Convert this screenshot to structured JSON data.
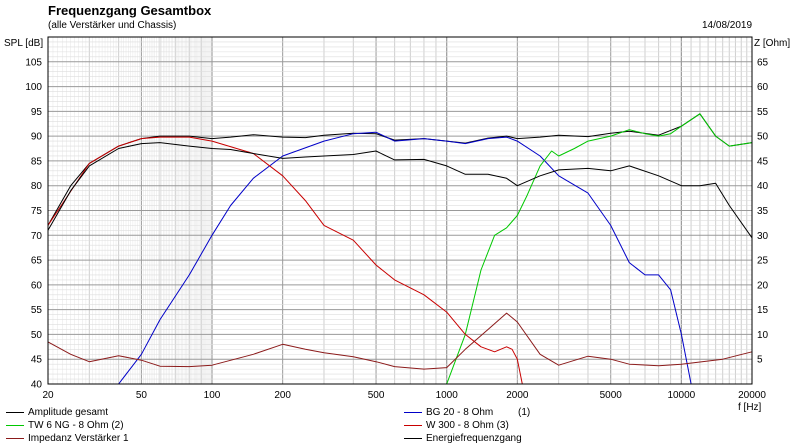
{
  "header": {
    "title": "Frequenzgang Gesamtbox",
    "subtitle": "(alle Verstärker und Chassis)",
    "date": "14/08/2019"
  },
  "axes": {
    "left_label": "SPL [dB]",
    "right_label": "Z [Ohm]",
    "x_unit": "f [Hz]"
  },
  "legend": [
    {
      "label": "Amplitude gesamt",
      "index": "",
      "color": "#000000"
    },
    {
      "label": "BG 20 - 8 Ohm",
      "index": "(1)",
      "color": "#0000c8"
    },
    {
      "label": "TW 6 NG - 8 Ohm (2)",
      "index": "",
      "color": "#00c800"
    },
    {
      "label": "W 300 - 8 Ohm (3)",
      "index": "",
      "color": "#c80000"
    },
    {
      "label": "Impedanz Verstärker 1",
      "index": "",
      "color": "#8b1a1a"
    },
    {
      "label": "Energiefrequenzgang",
      "index": "",
      "color": "#000000"
    }
  ],
  "chart_data": {
    "type": "line",
    "title": "Frequenzgang Gesamtbox",
    "subtitle": "(alle Verstärker und Chassis)",
    "xlabel": "f [Hz]",
    "ylabel": "SPL [dB]",
    "y2label": "Z [Ohm]",
    "xscale": "log",
    "xlim": [
      20,
      20000
    ],
    "ylim": [
      40,
      110
    ],
    "y2lim": [
      0,
      70
    ],
    "grid": true,
    "legend_position": "bottom",
    "x_ticks": [
      20,
      50,
      100,
      200,
      500,
      1000,
      2000,
      5000,
      10000,
      20000
    ],
    "x_tick_labels": [
      "20",
      "50",
      "100",
      "200",
      "500",
      "1000",
      "2000",
      "5000",
      "10000",
      "20000"
    ],
    "y_ticks": [
      40,
      45,
      50,
      55,
      60,
      65,
      70,
      75,
      80,
      85,
      90,
      95,
      100,
      105
    ],
    "y_tick_labels": [
      "40",
      "45",
      "50",
      "55",
      "60",
      "65",
      "70",
      "75",
      "80",
      "85",
      "90",
      "95",
      "100",
      "105"
    ],
    "y2_ticks": [
      5,
      10,
      15,
      20,
      25,
      30,
      35,
      40,
      45,
      50,
      55,
      60,
      65
    ],
    "y2_tick_labels": [
      "5",
      "10",
      "15",
      "20",
      "25",
      "30",
      "35",
      "40",
      "45",
      "50",
      "55",
      "60",
      "65"
    ],
    "series": [
      {
        "name": "Amplitude gesamt",
        "color": "#000000",
        "x": [
          20,
          25,
          30,
          40,
          50,
          60,
          80,
          100,
          120,
          150,
          200,
          250,
          300,
          400,
          500,
          600,
          800,
          1000,
          1200,
          1500,
          1800,
          2000,
          2500,
          3000,
          4000,
          5000,
          6000,
          8000,
          10000,
          12000,
          14000,
          16000,
          20000
        ],
        "y": [
          72,
          80,
          84.5,
          88,
          89.5,
          90,
          90,
          89.5,
          89.8,
          90.3,
          89.8,
          89.7,
          90.2,
          90.6,
          90.5,
          89.2,
          89.5,
          89,
          88.6,
          89.6,
          90,
          89.5,
          89.8,
          90.2,
          89.9,
          90.6,
          91,
          90.2,
          92,
          94.5,
          90,
          88,
          88.7
        ]
      },
      {
        "name": "BG 20 - 8 Ohm",
        "color": "#0000c8",
        "x": [
          20,
          40,
          50,
          60,
          80,
          100,
          120,
          150,
          200,
          300,
          400,
          500,
          600,
          800,
          1000,
          1200,
          1500,
          1800,
          2000,
          2500,
          3000,
          4000,
          5000,
          6000,
          7000,
          8000,
          9000,
          10000,
          11000,
          12000
        ],
        "y": [
          40,
          40,
          46,
          53,
          62,
          70,
          76,
          81.5,
          86,
          89,
          90.5,
          90.8,
          89,
          89.5,
          89,
          88.5,
          89.5,
          89.8,
          89,
          86,
          82,
          78.5,
          72,
          64.5,
          62,
          62,
          59,
          50,
          40,
          40
        ]
      },
      {
        "name": "TW 6 NG - 8 Ohm (2)",
        "color": "#00c800",
        "x": [
          20,
          500,
          1000,
          1200,
          1400,
          1600,
          1800,
          2000,
          2200,
          2500,
          2800,
          3000,
          3500,
          4000,
          5000,
          6000,
          7000,
          8000,
          9000,
          10000,
          12000,
          14000,
          16000,
          20000
        ],
        "y": [
          40,
          40,
          40,
          50,
          63,
          70,
          71.5,
          74,
          78,
          84,
          87,
          86,
          87.5,
          89,
          90,
          91.3,
          90.5,
          90,
          90.5,
          92,
          94.5,
          90,
          88,
          88.7
        ]
      },
      {
        "name": "W 300 - 8 Ohm (3)",
        "color": "#c80000",
        "x": [
          20,
          30,
          40,
          50,
          60,
          80,
          100,
          150,
          200,
          250,
          300,
          400,
          500,
          600,
          800,
          1000,
          1200,
          1400,
          1600,
          1800,
          1900,
          2000,
          2100,
          2200,
          20000
        ],
        "y": [
          72,
          84.5,
          88,
          89.5,
          89.8,
          89.8,
          89,
          86.5,
          82,
          77,
          72,
          69,
          64,
          61,
          58,
          54.5,
          50,
          47.5,
          46.5,
          47.5,
          47,
          45,
          40,
          40,
          40
        ]
      },
      {
        "name": "Impedanz Verstärker 1",
        "color": "#8b1a1a",
        "x": [
          20,
          25,
          30,
          40,
          50,
          60,
          80,
          100,
          150,
          200,
          250,
          300,
          400,
          500,
          600,
          800,
          1000,
          1200,
          1500,
          1800,
          2000,
          2500,
          3000,
          4000,
          5000,
          6000,
          8000,
          10000,
          15000,
          20000
        ],
        "y2": [
          8.5,
          6,
          4.5,
          5.7,
          4.8,
          3.6,
          3.5,
          3.8,
          6,
          8,
          7,
          6.3,
          5.5,
          4.5,
          3.5,
          3,
          3.3,
          7,
          11,
          14.3,
          12.5,
          6,
          3.8,
          5.6,
          5,
          4,
          3.7,
          4,
          5,
          6.5
        ]
      },
      {
        "name": "Energiefrequenzgang",
        "color": "#000000",
        "x": [
          20,
          25,
          30,
          40,
          50,
          60,
          80,
          100,
          120,
          150,
          200,
          250,
          300,
          400,
          500,
          600,
          800,
          1000,
          1200,
          1500,
          1800,
          2000,
          2500,
          3000,
          4000,
          5000,
          6000,
          8000,
          10000,
          12000,
          14000,
          16000,
          20000
        ],
        "y": [
          71,
          79,
          84,
          87.5,
          88.5,
          88.7,
          88,
          87.5,
          87.3,
          86.5,
          85.5,
          85.8,
          86,
          86.3,
          87,
          85.2,
          85.3,
          84,
          82.3,
          82.3,
          81.5,
          80,
          82,
          83.2,
          83.5,
          83,
          84,
          82,
          80,
          80,
          80.5,
          76,
          69.5
        ]
      }
    ]
  }
}
